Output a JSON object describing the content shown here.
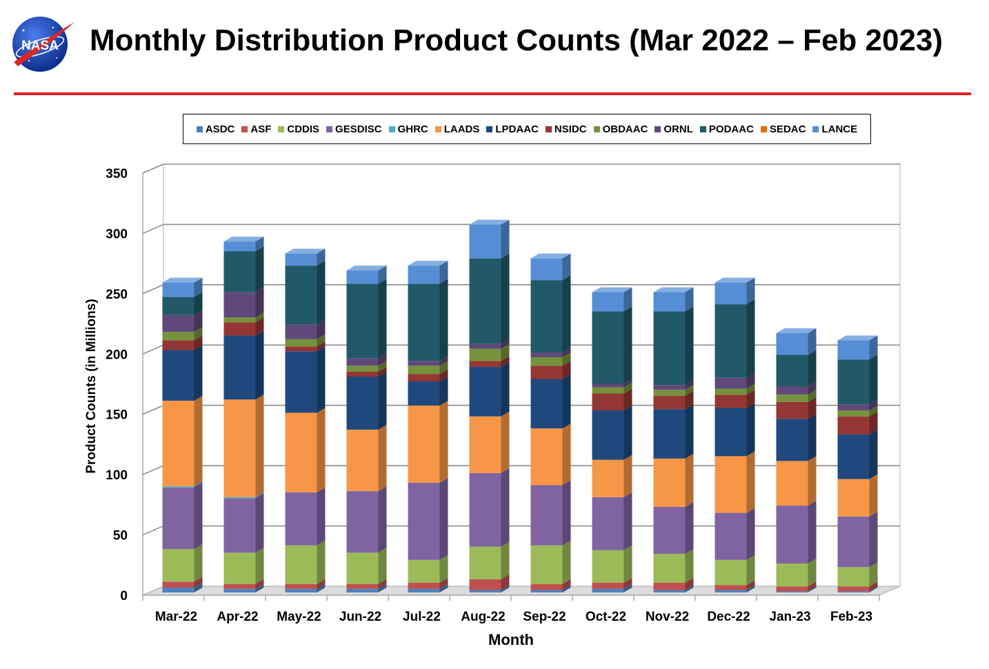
{
  "header": {
    "title": "Monthly Distribution Product Counts (Mar 2022 – Feb 2023)",
    "logo_text": "NASA"
  },
  "colors": {
    "rule": "#e02020"
  },
  "chart_data": {
    "type": "bar",
    "stacked": true,
    "three_d": true,
    "title": "",
    "xlabel": "Month",
    "ylabel": "Product Counts (in Millions)",
    "ylim": [
      0,
      350
    ],
    "yticks": [
      0,
      50,
      100,
      150,
      200,
      250,
      300,
      350
    ],
    "grid": true,
    "legend_position": "top",
    "categories": [
      "Mar-22",
      "Apr-22",
      "May-22",
      "Jun-22",
      "Jul-22",
      "Aug-22",
      "Sep-22",
      "Oct-22",
      "Nov-22",
      "Dec-22",
      "Jan-23",
      "Feb-23"
    ],
    "series": [
      {
        "name": "ASDC",
        "color": "#4f81bd",
        "values": [
          4,
          3,
          3,
          3,
          3,
          2,
          2,
          3,
          2,
          2,
          1,
          1
        ]
      },
      {
        "name": "ASF",
        "color": "#c0504d",
        "values": [
          5,
          4,
          4,
          4,
          5,
          9,
          5,
          5,
          6,
          4,
          4,
          4
        ]
      },
      {
        "name": "CDDIS",
        "color": "#9bbb59",
        "values": [
          27,
          26,
          32,
          26,
          19,
          27,
          32,
          27,
          24,
          21,
          19,
          16
        ]
      },
      {
        "name": "GESDISC",
        "color": "#8064a2",
        "values": [
          51,
          45,
          44,
          51,
          64,
          61,
          50,
          44,
          39,
          39,
          48,
          42
        ]
      },
      {
        "name": "GHRC",
        "color": "#4bacc6",
        "values": [
          1,
          1,
          0,
          0,
          0,
          0,
          0,
          0,
          0,
          0,
          0,
          0
        ]
      },
      {
        "name": "LAADS",
        "color": "#f79646",
        "values": [
          71,
          81,
          66,
          51,
          64,
          47,
          47,
          31,
          40,
          47,
          37,
          31
        ]
      },
      {
        "name": "LPDAAC",
        "color": "#1f497d",
        "values": [
          42,
          53,
          51,
          44,
          20,
          41,
          41,
          41,
          41,
          40,
          35,
          37
        ]
      },
      {
        "name": "NSIDC",
        "color": "#943634",
        "values": [
          8,
          11,
          4,
          4,
          6,
          5,
          11,
          14,
          11,
          11,
          14,
          15
        ]
      },
      {
        "name": "OBDAAC",
        "color": "#76923c",
        "values": [
          7,
          4,
          6,
          5,
          7,
          10,
          7,
          5,
          5,
          5,
          6,
          5
        ]
      },
      {
        "name": "ORNL",
        "color": "#5f497a",
        "values": [
          14,
          21,
          12,
          6,
          4,
          4,
          4,
          3,
          4,
          9,
          7,
          5
        ]
      },
      {
        "name": "PODAAC",
        "color": "#215968",
        "values": [
          15,
          34,
          49,
          62,
          64,
          71,
          60,
          60,
          61,
          61,
          26,
          37
        ]
      },
      {
        "name": "SEDAC",
        "color": "#e46c0a",
        "values": [
          0,
          0,
          0,
          0,
          0,
          0,
          0,
          0,
          0,
          0,
          0,
          0
        ]
      },
      {
        "name": "LANCE",
        "color": "#558ed5",
        "values": [
          12,
          8,
          10,
          11,
          15,
          28,
          18,
          16,
          16,
          18,
          18,
          16
        ]
      }
    ]
  }
}
